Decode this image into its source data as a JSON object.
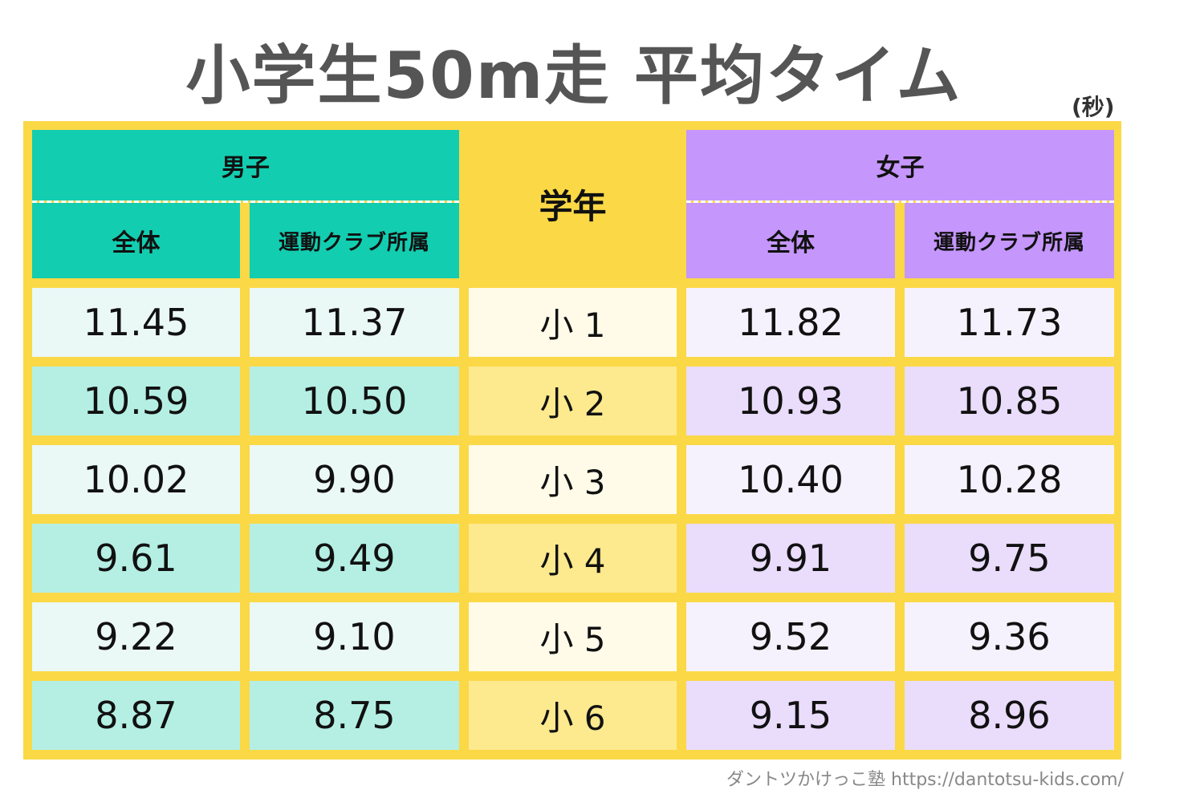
{
  "title": "小学生50m走 平均タイム",
  "unit": "(秒)",
  "credit": "ダントツかけっこ塾 https://dantotsu-kids.com/",
  "colors": {
    "frame": "#fbd846",
    "boys_header": "#13cdb0",
    "girls_header": "#c596fb",
    "grade_header": "#fbd846",
    "boys_row_light": "#eaf8f6",
    "boys_row_dark": "#b5efe4",
    "grade_row_light": "#fffbe8",
    "grade_row_dark": "#fde98e",
    "girls_row_light": "#f6f2fd",
    "girls_row_dark": "#eadcfb"
  },
  "headers": {
    "boys": "男子",
    "girls": "女子",
    "grade": "学年",
    "overall": "全体",
    "club": "運動クラブ所属"
  },
  "chart_data": {
    "type": "table",
    "title": "小学生50m走 平均タイム",
    "unit": "(秒)",
    "columns": [
      "男子 全体",
      "男子 運動クラブ所属",
      "学年",
      "女子 全体",
      "女子 運動クラブ所属"
    ],
    "rows": [
      {
        "grade": "小 1",
        "boys_all": "11.45",
        "boys_club": "11.37",
        "girls_all": "11.82",
        "girls_club": "11.73"
      },
      {
        "grade": "小 2",
        "boys_all": "10.59",
        "boys_club": "10.50",
        "girls_all": "10.93",
        "girls_club": "10.85"
      },
      {
        "grade": "小 3",
        "boys_all": "10.02",
        "boys_club": "9.90",
        "girls_all": "10.40",
        "girls_club": "10.28"
      },
      {
        "grade": "小 4",
        "boys_all": "9.61",
        "boys_club": "9.49",
        "girls_all": "9.91",
        "girls_club": "9.75"
      },
      {
        "grade": "小 5",
        "boys_all": "9.22",
        "boys_club": "9.10",
        "girls_all": "9.52",
        "girls_club": "9.36"
      },
      {
        "grade": "小 6",
        "boys_all": "8.87",
        "boys_club": "8.75",
        "girls_all": "9.15",
        "girls_club": "8.96"
      }
    ]
  }
}
